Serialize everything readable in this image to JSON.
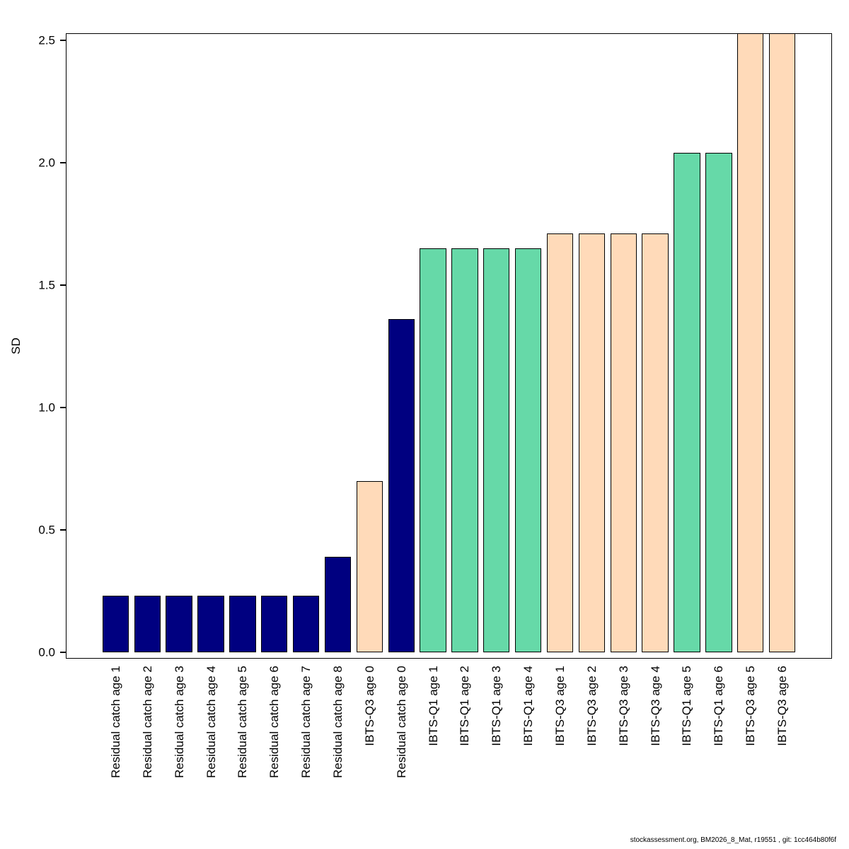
{
  "chart_data": {
    "type": "bar",
    "title": "",
    "xlabel": "",
    "ylabel": "SD",
    "ylim": [
      0,
      2.5
    ],
    "grid": false,
    "legend": false,
    "yticks": [
      "0.0",
      "0.5",
      "1.0",
      "1.5",
      "2.0",
      "2.5"
    ],
    "ytick_values": [
      0,
      0.5,
      1.0,
      1.5,
      2.0,
      2.5
    ],
    "bar_border_color": "#000000",
    "palette": {
      "residual_catch": "#000080",
      "ibts_q1": "#66D9A8",
      "ibts_q3": "#FFDAB9"
    },
    "bars": [
      {
        "label": "Residual catch age 1",
        "value": 0.23,
        "color": "#000080"
      },
      {
        "label": "Residual catch age 2",
        "value": 0.23,
        "color": "#000080"
      },
      {
        "label": "Residual catch age 3",
        "value": 0.23,
        "color": "#000080"
      },
      {
        "label": "Residual catch age 4",
        "value": 0.23,
        "color": "#000080"
      },
      {
        "label": "Residual catch age 5",
        "value": 0.23,
        "color": "#000080"
      },
      {
        "label": "Residual catch age 6",
        "value": 0.23,
        "color": "#000080"
      },
      {
        "label": "Residual catch age 7",
        "value": 0.23,
        "color": "#000080"
      },
      {
        "label": "Residual catch age 8",
        "value": 0.39,
        "color": "#000080"
      },
      {
        "label": "IBTS-Q3 age 0",
        "value": 0.7,
        "color": "#FFDAB9"
      },
      {
        "label": "Residual catch age 0",
        "value": 1.36,
        "color": "#000080"
      },
      {
        "label": "IBTS-Q1 age 1",
        "value": 1.65,
        "color": "#66D9A8"
      },
      {
        "label": "IBTS-Q1 age 2",
        "value": 1.65,
        "color": "#66D9A8"
      },
      {
        "label": "IBTS-Q1 age 3",
        "value": 1.65,
        "color": "#66D9A8"
      },
      {
        "label": "IBTS-Q1 age 4",
        "value": 1.65,
        "color": "#66D9A8"
      },
      {
        "label": "IBTS-Q3 age 1",
        "value": 1.71,
        "color": "#FFDAB9"
      },
      {
        "label": "IBTS-Q3 age 2",
        "value": 1.71,
        "color": "#FFDAB9"
      },
      {
        "label": "IBTS-Q3 age 3",
        "value": 1.71,
        "color": "#FFDAB9"
      },
      {
        "label": "IBTS-Q3 age 4",
        "value": 1.71,
        "color": "#FFDAB9"
      },
      {
        "label": "IBTS-Q1 age 5",
        "value": 2.04,
        "color": "#66D9A8"
      },
      {
        "label": "IBTS-Q1 age 6",
        "value": 2.04,
        "color": "#66D9A8"
      },
      {
        "label": "IBTS-Q3 age 5",
        "value": 2.53,
        "color": "#FFDAB9"
      },
      {
        "label": "IBTS-Q3 age 6",
        "value": 2.53,
        "color": "#FFDAB9"
      }
    ]
  },
  "footer": {
    "text": "stockassessment.org, BM2026_8_Mat, r19551 , git: 1cc464b80f6f"
  }
}
